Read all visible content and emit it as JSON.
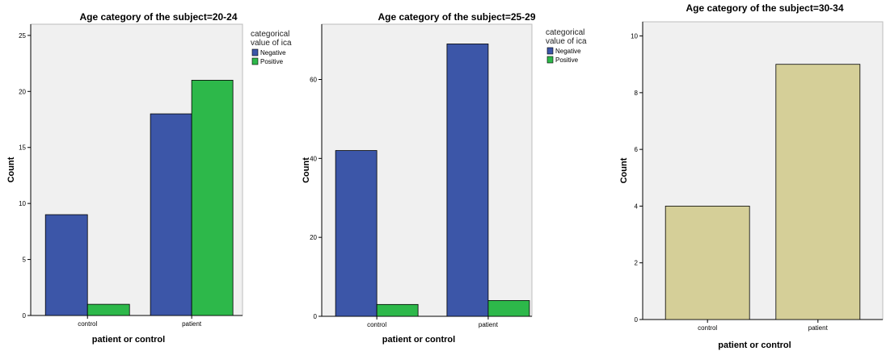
{
  "chart_data": [
    {
      "type": "bar",
      "title": "Age category of the subject=20-24",
      "xlabel": "patient or control",
      "ylabel": "Count",
      "categories": [
        "control",
        "patient"
      ],
      "series": [
        {
          "name": "Negative",
          "color": "#3c56a8",
          "values": [
            9,
            18
          ]
        },
        {
          "name": "Positive",
          "color": "#2db84a",
          "values": [
            1,
            21
          ]
        }
      ],
      "ylim": [
        0,
        26
      ],
      "yticks": [
        0,
        5,
        10,
        15,
        20,
        25
      ],
      "legend_title": "categorical value of ica",
      "legend_position": "top-right"
    },
    {
      "type": "bar",
      "title": "Age category of the subject=25-29",
      "xlabel": "patient or control",
      "ylabel": "Count",
      "categories": [
        "control",
        "patient"
      ],
      "series": [
        {
          "name": "Negative",
          "color": "#3c56a8",
          "values": [
            42,
            69
          ]
        },
        {
          "name": "Positive",
          "color": "#2db84a",
          "values": [
            3,
            4
          ]
        }
      ],
      "ylim": [
        0,
        74
      ],
      "yticks": [
        0,
        20,
        40,
        60
      ],
      "legend_title": "categorical value of ica",
      "legend_position": "top-right"
    },
    {
      "type": "bar",
      "title": "Age category of the subject=30-34",
      "xlabel": "patient or control",
      "ylabel": "Count",
      "categories": [
        "control",
        "patient"
      ],
      "series": [
        {
          "color": "#d5cf98",
          "values": [
            4,
            9
          ]
        }
      ],
      "ylim": [
        0,
        10.5
      ],
      "yticks": [
        0,
        2,
        4,
        6,
        8,
        10
      ],
      "legend_position": "none"
    }
  ]
}
